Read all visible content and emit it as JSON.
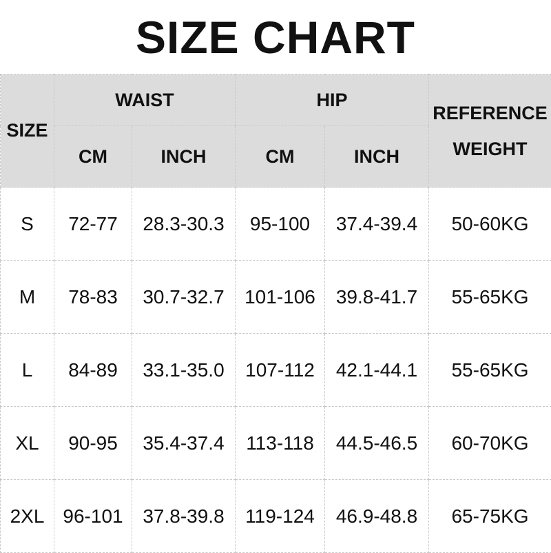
{
  "title": "SIZE CHART",
  "headers": {
    "size": "SIZE",
    "waist": "WAIST",
    "hip": "HIP",
    "reference_line1": "REFERENCE",
    "reference_line2": "WEIGHT",
    "cm": "CM",
    "inch": "INCH"
  },
  "rows": [
    {
      "size": "S",
      "waist_cm": "72-77",
      "waist_inch": "28.3-30.3",
      "hip_cm": "95-100",
      "hip_inch": "37.4-39.4",
      "weight": "50-60KG"
    },
    {
      "size": "M",
      "waist_cm": "78-83",
      "waist_inch": "30.7-32.7",
      "hip_cm": "101-106",
      "hip_inch": "39.8-41.7",
      "weight": "55-65KG"
    },
    {
      "size": "L",
      "waist_cm": "84-89",
      "waist_inch": "33.1-35.0",
      "hip_cm": "107-112",
      "hip_inch": "42.1-44.1",
      "weight": "55-65KG"
    },
    {
      "size": "XL",
      "waist_cm": "90-95",
      "waist_inch": "35.4-37.4",
      "hip_cm": "113-118",
      "hip_inch": "44.5-46.5",
      "weight": "60-70KG"
    },
    {
      "size": "2XL",
      "waist_cm": "96-101",
      "waist_inch": "37.8-39.8",
      "hip_cm": "119-124",
      "hip_inch": "46.9-48.8",
      "weight": "65-75KG"
    }
  ],
  "colors": {
    "header_bg": "#dcdcdc",
    "border": "#c8c8c8",
    "text": "#111111"
  }
}
